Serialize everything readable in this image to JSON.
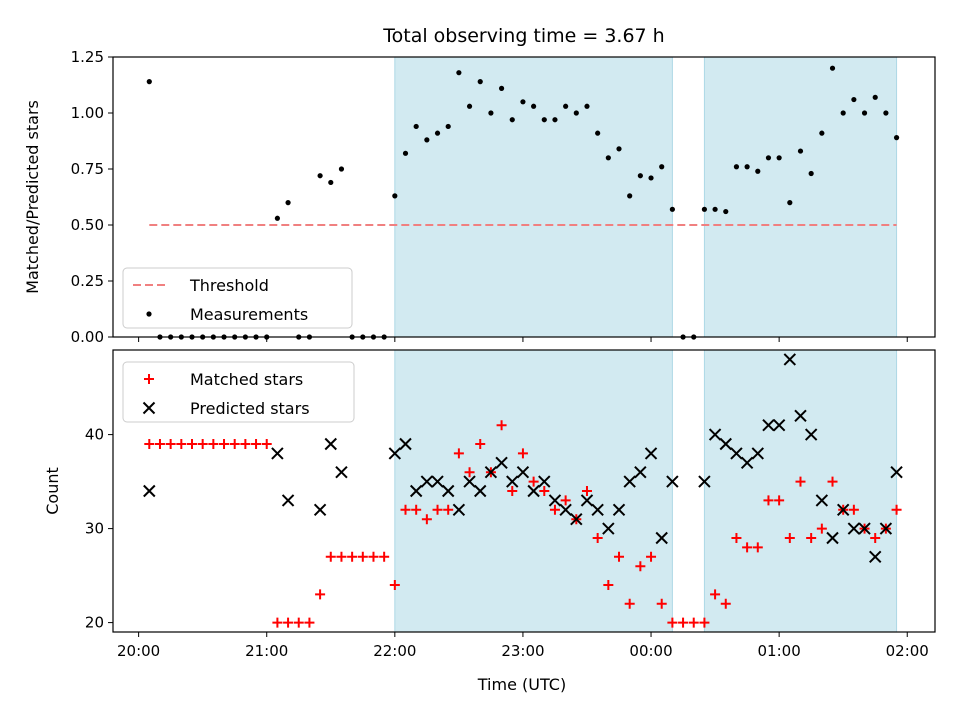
{
  "chart_data": {
    "title": "Total observing time = 3.67 h",
    "xlabel": "Time (UTC)",
    "x_ticks": [
      "20:00",
      "21:00",
      "22:00",
      "23:00",
      "00:00",
      "01:00",
      "02:00"
    ],
    "shaded_intervals": [
      [
        "22:00",
        "00:10"
      ],
      [
        "00:25",
        "01:55"
      ]
    ],
    "shade_color": "#add8e6",
    "panels": [
      {
        "type": "scatter",
        "ylabel": "Matched/Predicted stars",
        "ylim": [
          0,
          1.25
        ],
        "y_ticks": [
          "0.00",
          "0.25",
          "0.50",
          "0.75",
          "1.00",
          "1.25"
        ],
        "legend_position": "lower-left",
        "series": [
          {
            "name": "Threshold",
            "style": "dashed-line",
            "color": "#f08080",
            "points": [
              [
                "20:05",
                0.5
              ],
              [
                "01:55",
                0.5
              ]
            ]
          },
          {
            "name": "Measurements",
            "style": "dot",
            "color": "#000000",
            "points": [
              [
                "20:05",
                1.14
              ],
              [
                "20:10",
                0
              ],
              [
                "20:15",
                0
              ],
              [
                "20:20",
                0
              ],
              [
                "20:25",
                0
              ],
              [
                "20:30",
                0
              ],
              [
                "20:35",
                0
              ],
              [
                "20:40",
                0
              ],
              [
                "20:45",
                0
              ],
              [
                "20:50",
                0
              ],
              [
                "20:55",
                0
              ],
              [
                "21:00",
                0
              ],
              [
                "21:05",
                0.53
              ],
              [
                "21:10",
                0.6
              ],
              [
                "21:15",
                0
              ],
              [
                "21:20",
                0
              ],
              [
                "21:25",
                0.72
              ],
              [
                "21:30",
                0.69
              ],
              [
                "21:35",
                0.75
              ],
              [
                "21:40",
                0
              ],
              [
                "21:45",
                0
              ],
              [
                "21:50",
                0
              ],
              [
                "21:55",
                0
              ],
              [
                "22:00",
                0.63
              ],
              [
                "22:05",
                0.82
              ],
              [
                "22:10",
                0.94
              ],
              [
                "22:15",
                0.88
              ],
              [
                "22:20",
                0.91
              ],
              [
                "22:25",
                0.94
              ],
              [
                "22:30",
                1.18
              ],
              [
                "22:35",
                1.03
              ],
              [
                "22:40",
                1.14
              ],
              [
                "22:45",
                1.0
              ],
              [
                "22:50",
                1.11
              ],
              [
                "22:55",
                0.97
              ],
              [
                "23:00",
                1.05
              ],
              [
                "23:05",
                1.03
              ],
              [
                "23:10",
                0.97
              ],
              [
                "23:15",
                0.97
              ],
              [
                "23:20",
                1.03
              ],
              [
                "23:25",
                1.0
              ],
              [
                "23:30",
                1.03
              ],
              [
                "23:35",
                0.91
              ],
              [
                "23:40",
                0.8
              ],
              [
                "23:45",
                0.84
              ],
              [
                "23:50",
                0.63
              ],
              [
                "23:55",
                0.72
              ],
              [
                "00:00",
                0.71
              ],
              [
                "00:05",
                0.76
              ],
              [
                "00:10",
                0.57
              ],
              [
                "00:15",
                0
              ],
              [
                "00:20",
                0
              ],
              [
                "00:25",
                0.57
              ],
              [
                "00:30",
                0.57
              ],
              [
                "00:35",
                0.56
              ],
              [
                "00:40",
                0.76
              ],
              [
                "00:45",
                0.76
              ],
              [
                "00:50",
                0.74
              ],
              [
                "00:55",
                0.8
              ],
              [
                "01:00",
                0.8
              ],
              [
                "01:05",
                0.6
              ],
              [
                "01:10",
                0.83
              ],
              [
                "01:15",
                0.73
              ],
              [
                "01:20",
                0.91
              ],
              [
                "01:25",
                1.2
              ],
              [
                "01:30",
                1.0
              ],
              [
                "01:35",
                1.06
              ],
              [
                "01:40",
                1.0
              ],
              [
                "01:45",
                1.07
              ],
              [
                "01:50",
                1.0
              ],
              [
                "01:55",
                0.89
              ]
            ]
          }
        ]
      },
      {
        "type": "scatter",
        "ylabel": "Count",
        "ylim": [
          19,
          49
        ],
        "y_ticks": [
          "20",
          "30",
          "40"
        ],
        "legend_position": "upper-left",
        "series": [
          {
            "name": "Matched stars",
            "style": "plus",
            "color": "#ff0000",
            "points": [
              [
                "20:05",
                39
              ],
              [
                "20:10",
                39
              ],
              [
                "20:15",
                39
              ],
              [
                "20:20",
                39
              ],
              [
                "20:25",
                39
              ],
              [
                "20:30",
                39
              ],
              [
                "20:35",
                39
              ],
              [
                "20:40",
                39
              ],
              [
                "20:45",
                39
              ],
              [
                "20:50",
                39
              ],
              [
                "20:55",
                39
              ],
              [
                "21:00",
                39
              ],
              [
                "21:05",
                20
              ],
              [
                "21:10",
                20
              ],
              [
                "21:15",
                20
              ],
              [
                "21:20",
                20
              ],
              [
                "21:25",
                23
              ],
              [
                "21:30",
                27
              ],
              [
                "21:35",
                27
              ],
              [
                "21:40",
                27
              ],
              [
                "21:45",
                27
              ],
              [
                "21:50",
                27
              ],
              [
                "21:55",
                27
              ],
              [
                "22:00",
                24
              ],
              [
                "22:05",
                32
              ],
              [
                "22:10",
                32
              ],
              [
                "22:15",
                31
              ],
              [
                "22:20",
                32
              ],
              [
                "22:25",
                32
              ],
              [
                "22:30",
                38
              ],
              [
                "22:35",
                36
              ],
              [
                "22:40",
                39
              ],
              [
                "22:45",
                36
              ],
              [
                "22:50",
                41
              ],
              [
                "22:55",
                34
              ],
              [
                "23:00",
                38
              ],
              [
                "23:05",
                35
              ],
              [
                "23:10",
                34
              ],
              [
                "23:15",
                32
              ],
              [
                "23:20",
                33
              ],
              [
                "23:25",
                31
              ],
              [
                "23:30",
                34
              ],
              [
                "23:35",
                29
              ],
              [
                "23:40",
                24
              ],
              [
                "23:45",
                27
              ],
              [
                "23:50",
                22
              ],
              [
                "23:55",
                26
              ],
              [
                "00:00",
                27
              ],
              [
                "00:05",
                22
              ],
              [
                "00:10",
                20
              ],
              [
                "00:15",
                20
              ],
              [
                "00:20",
                20
              ],
              [
                "00:25",
                20
              ],
              [
                "00:30",
                23
              ],
              [
                "00:35",
                22
              ],
              [
                "00:40",
                29
              ],
              [
                "00:45",
                28
              ],
              [
                "00:50",
                28
              ],
              [
                "00:55",
                33
              ],
              [
                "01:00",
                33
              ],
              [
                "01:05",
                29
              ],
              [
                "01:10",
                35
              ],
              [
                "01:15",
                29
              ],
              [
                "01:20",
                30
              ],
              [
                "01:25",
                35
              ],
              [
                "01:30",
                32
              ],
              [
                "01:35",
                32
              ],
              [
                "01:40",
                30
              ],
              [
                "01:45",
                29
              ],
              [
                "01:50",
                30
              ],
              [
                "01:55",
                32
              ]
            ]
          },
          {
            "name": "Predicted stars",
            "style": "cross",
            "color": "#000000",
            "points": [
              [
                "20:05",
                34
              ],
              [
                "21:05",
                38
              ],
              [
                "21:10",
                33
              ],
              [
                "21:25",
                32
              ],
              [
                "21:30",
                39
              ],
              [
                "21:35",
                36
              ],
              [
                "22:00",
                38
              ],
              [
                "22:05",
                39
              ],
              [
                "22:10",
                34
              ],
              [
                "22:15",
                35
              ],
              [
                "22:20",
                35
              ],
              [
                "22:25",
                34
              ],
              [
                "22:30",
                32
              ],
              [
                "22:35",
                35
              ],
              [
                "22:40",
                34
              ],
              [
                "22:45",
                36
              ],
              [
                "22:50",
                37
              ],
              [
                "22:55",
                35
              ],
              [
                "23:00",
                36
              ],
              [
                "23:05",
                34
              ],
              [
                "23:10",
                35
              ],
              [
                "23:15",
                33
              ],
              [
                "23:20",
                32
              ],
              [
                "23:25",
                31
              ],
              [
                "23:30",
                33
              ],
              [
                "23:35",
                32
              ],
              [
                "23:40",
                30
              ],
              [
                "23:45",
                32
              ],
              [
                "23:50",
                35
              ],
              [
                "23:55",
                36
              ],
              [
                "00:00",
                38
              ],
              [
                "00:05",
                29
              ],
              [
                "00:10",
                35
              ],
              [
                "00:25",
                35
              ],
              [
                "00:30",
                40
              ],
              [
                "00:35",
                39
              ],
              [
                "00:40",
                38
              ],
              [
                "00:45",
                37
              ],
              [
                "00:50",
                38
              ],
              [
                "00:55",
                41
              ],
              [
                "01:00",
                41
              ],
              [
                "01:05",
                48
              ],
              [
                "01:10",
                42
              ],
              [
                "01:15",
                40
              ],
              [
                "01:20",
                33
              ],
              [
                "01:25",
                29
              ],
              [
                "01:30",
                32
              ],
              [
                "01:35",
                30
              ],
              [
                "01:40",
                30
              ],
              [
                "01:45",
                27
              ],
              [
                "01:50",
                30
              ],
              [
                "01:55",
                36
              ]
            ]
          }
        ]
      }
    ]
  }
}
